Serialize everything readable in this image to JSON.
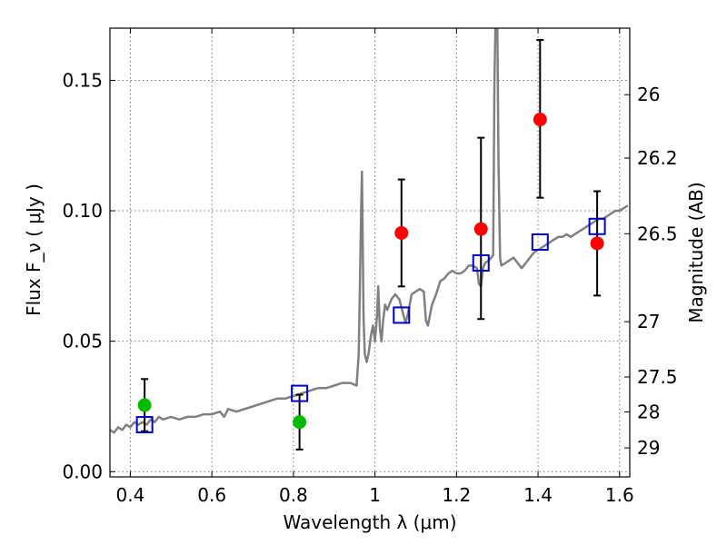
{
  "chart_data": {
    "type": "scatter",
    "xlabel": "Wavelength  λ (μm)",
    "ylabel": "Flux  F_ν  ( μJy )",
    "ylabel_right": "Magnitude (AB)",
    "xlim": [
      0.35,
      1.625
    ],
    "ylim": [
      -0.002,
      0.17
    ],
    "grid": true,
    "x_ticks": [
      {
        "value": 0.4,
        "label": "0.4"
      },
      {
        "value": 0.6,
        "label": "0.6"
      },
      {
        "value": 0.8,
        "label": "0.8"
      },
      {
        "value": 1.0,
        "label": "1"
      },
      {
        "value": 1.2,
        "label": "1.2"
      },
      {
        "value": 1.4,
        "label": "1.4"
      },
      {
        "value": 1.6,
        "label": "1.6"
      }
    ],
    "y_ticks": [
      {
        "value": 0.0,
        "label": "0.00"
      },
      {
        "value": 0.05,
        "label": "0.05"
      },
      {
        "value": 0.1,
        "label": "0.10"
      },
      {
        "value": 0.15,
        "label": "0.15"
      }
    ],
    "y_right_ticks": [
      {
        "flux": 0.1445,
        "label": "26"
      },
      {
        "flux": 0.1202,
        "label": "26.2"
      },
      {
        "flux": 0.0912,
        "label": "26.5"
      },
      {
        "flux": 0.0575,
        "label": "27"
      },
      {
        "flux": 0.0363,
        "label": "27.5"
      },
      {
        "flux": 0.0229,
        "label": "28"
      },
      {
        "flux": 0.0091,
        "label": "29"
      }
    ],
    "spectrum": {
      "color": "#808080",
      "points": [
        [
          0.35,
          0.016
        ],
        [
          0.36,
          0.015
        ],
        [
          0.37,
          0.017
        ],
        [
          0.38,
          0.016
        ],
        [
          0.39,
          0.018
        ],
        [
          0.4,
          0.017
        ],
        [
          0.41,
          0.019
        ],
        [
          0.42,
          0.018
        ],
        [
          0.43,
          0.019
        ],
        [
          0.44,
          0.018
        ],
        [
          0.45,
          0.02
        ],
        [
          0.46,
          0.019
        ],
        [
          0.47,
          0.021
        ],
        [
          0.48,
          0.02
        ],
        [
          0.5,
          0.021
        ],
        [
          0.52,
          0.02
        ],
        [
          0.54,
          0.021
        ],
        [
          0.56,
          0.021
        ],
        [
          0.58,
          0.022
        ],
        [
          0.6,
          0.022
        ],
        [
          0.62,
          0.023
        ],
        [
          0.63,
          0.021
        ],
        [
          0.64,
          0.024
        ],
        [
          0.66,
          0.023
        ],
        [
          0.68,
          0.024
        ],
        [
          0.7,
          0.025
        ],
        [
          0.72,
          0.026
        ],
        [
          0.74,
          0.027
        ],
        [
          0.76,
          0.028
        ],
        [
          0.78,
          0.028
        ],
        [
          0.8,
          0.029
        ],
        [
          0.82,
          0.03
        ],
        [
          0.84,
          0.031
        ],
        [
          0.86,
          0.032
        ],
        [
          0.88,
          0.032
        ],
        [
          0.9,
          0.033
        ],
        [
          0.92,
          0.034
        ],
        [
          0.94,
          0.034
        ],
        [
          0.955,
          0.033
        ],
        [
          0.96,
          0.045
        ],
        [
          0.963,
          0.07
        ],
        [
          0.966,
          0.1
        ],
        [
          0.968,
          0.115
        ],
        [
          0.97,
          0.09
        ],
        [
          0.972,
          0.06
        ],
        [
          0.975,
          0.045
        ],
        [
          0.98,
          0.042
        ],
        [
          0.985,
          0.046
        ],
        [
          0.99,
          0.052
        ],
        [
          0.995,
          0.056
        ],
        [
          1.0,
          0.05
        ],
        [
          1.005,
          0.06
        ],
        [
          1.008,
          0.071
        ],
        [
          1.012,
          0.055
        ],
        [
          1.016,
          0.05
        ],
        [
          1.02,
          0.058
        ],
        [
          1.025,
          0.064
        ],
        [
          1.03,
          0.062
        ],
        [
          1.04,
          0.066
        ],
        [
          1.05,
          0.068
        ],
        [
          1.06,
          0.066
        ],
        [
          1.07,
          0.06
        ],
        [
          1.075,
          0.057
        ],
        [
          1.08,
          0.06
        ],
        [
          1.09,
          0.068
        ],
        [
          1.1,
          0.069
        ],
        [
          1.11,
          0.07
        ],
        [
          1.12,
          0.069
        ],
        [
          1.125,
          0.058
        ],
        [
          1.13,
          0.056
        ],
        [
          1.14,
          0.064
        ],
        [
          1.15,
          0.068
        ],
        [
          1.16,
          0.073
        ],
        [
          1.17,
          0.074
        ],
        [
          1.18,
          0.076
        ],
        [
          1.19,
          0.077
        ],
        [
          1.2,
          0.076
        ],
        [
          1.21,
          0.076
        ],
        [
          1.22,
          0.077
        ],
        [
          1.23,
          0.079
        ],
        [
          1.24,
          0.079
        ],
        [
          1.25,
          0.078
        ],
        [
          1.255,
          0.072
        ],
        [
          1.26,
          0.071
        ],
        [
          1.265,
          0.078
        ],
        [
          1.27,
          0.08
        ],
        [
          1.28,
          0.081
        ],
        [
          1.29,
          0.083
        ],
        [
          1.293,
          0.15
        ],
        [
          1.296,
          0.175
        ],
        [
          1.3,
          0.175
        ],
        [
          1.303,
          0.12
        ],
        [
          1.307,
          0.082
        ],
        [
          1.31,
          0.079
        ],
        [
          1.32,
          0.08
        ],
        [
          1.33,
          0.081
        ],
        [
          1.34,
          0.082
        ],
        [
          1.35,
          0.08
        ],
        [
          1.36,
          0.078
        ],
        [
          1.37,
          0.08
        ],
        [
          1.38,
          0.082
        ],
        [
          1.39,
          0.084
        ],
        [
          1.4,
          0.085
        ],
        [
          1.41,
          0.086
        ],
        [
          1.42,
          0.087
        ],
        [
          1.43,
          0.088
        ],
        [
          1.44,
          0.089
        ],
        [
          1.45,
          0.09
        ],
        [
          1.46,
          0.09
        ],
        [
          1.47,
          0.091
        ],
        [
          1.48,
          0.09
        ],
        [
          1.49,
          0.091
        ],
        [
          1.5,
          0.092
        ],
        [
          1.51,
          0.093
        ],
        [
          1.52,
          0.094
        ],
        [
          1.53,
          0.095
        ],
        [
          1.54,
          0.096
        ],
        [
          1.55,
          0.097
        ],
        [
          1.56,
          0.097
        ],
        [
          1.57,
          0.098
        ],
        [
          1.58,
          0.099
        ],
        [
          1.59,
          0.1
        ],
        [
          1.6,
          0.1
        ],
        [
          1.61,
          0.101
        ],
        [
          1.62,
          0.102
        ]
      ]
    },
    "model_points": {
      "color": "#0000cc",
      "marker": "open-square",
      "points": [
        [
          0.435,
          0.018
        ],
        [
          0.815,
          0.03
        ],
        [
          1.065,
          0.06
        ],
        [
          1.26,
          0.08
        ],
        [
          1.405,
          0.088
        ],
        [
          1.545,
          0.094
        ]
      ]
    },
    "observed_points": [
      {
        "x": 0.435,
        "y": 0.0255,
        "err": [
          0.0155,
          0.0355
        ],
        "color": "#00bb00"
      },
      {
        "x": 0.815,
        "y": 0.019,
        "err": [
          0.0085,
          0.0295
        ],
        "color": "#00bb00"
      },
      {
        "x": 1.065,
        "y": 0.0915,
        "err": [
          0.071,
          0.112
        ],
        "color": "#ff0000"
      },
      {
        "x": 1.26,
        "y": 0.093,
        "err": [
          0.0585,
          0.128
        ],
        "color": "#ff0000"
      },
      {
        "x": 1.405,
        "y": 0.135,
        "err": [
          0.105,
          0.1655
        ],
        "color": "#ff0000"
      },
      {
        "x": 1.545,
        "y": 0.0875,
        "err": [
          0.0675,
          0.1075
        ],
        "color": "#ff0000"
      }
    ]
  }
}
